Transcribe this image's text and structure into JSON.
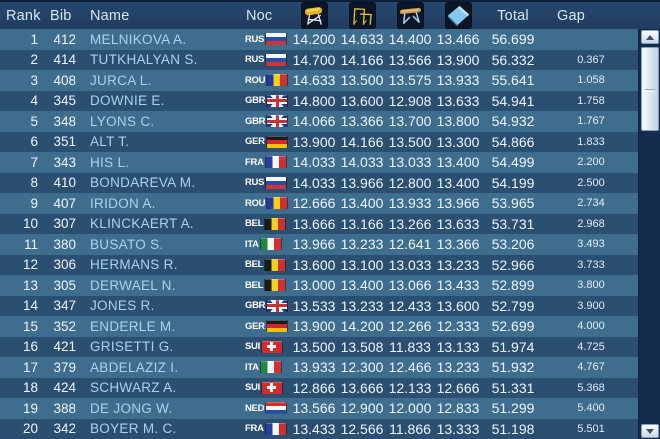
{
  "colors": {
    "header_bg": "#1f3d60",
    "row_light": "#3e6d8e",
    "row_dark": "#2b4f70",
    "name_text": "#a9d4ec",
    "number_text": "#eef6fd",
    "header_text": "#d6e7f5",
    "scroll_track": "#142c4e",
    "icon_bg": "#0a1526"
  },
  "header": {
    "rank": "Rank",
    "bib": "Bib",
    "name": "Name",
    "noc": "Noc",
    "total": "Total",
    "gap": "Gap",
    "apparatus": [
      {
        "icon": "vault-icon"
      },
      {
        "icon": "uneven-bars-icon"
      },
      {
        "icon": "balance-beam-icon"
      },
      {
        "icon": "floor-icon"
      }
    ]
  },
  "rows": [
    {
      "rank": "1",
      "bib": "412",
      "name": "MELNIKOVA A.",
      "noc": "RUS",
      "scores": [
        "14.200",
        "14.633",
        "14.400",
        "13.466"
      ],
      "total": "56.699",
      "gap": ""
    },
    {
      "rank": "2",
      "bib": "414",
      "name": "TUTKHALYAN S.",
      "noc": "RUS",
      "scores": [
        "14.700",
        "14.166",
        "13.566",
        "13.900"
      ],
      "total": "56.332",
      "gap": "0.367"
    },
    {
      "rank": "3",
      "bib": "408",
      "name": "JURCA L.",
      "noc": "ROU",
      "scores": [
        "14.633",
        "13.500",
        "13.575",
        "13.933"
      ],
      "total": "55.641",
      "gap": "1.058"
    },
    {
      "rank": "4",
      "bib": "345",
      "name": "DOWNIE E.",
      "noc": "GBR",
      "scores": [
        "14.800",
        "13.600",
        "12.908",
        "13.633"
      ],
      "total": "54.941",
      "gap": "1.758"
    },
    {
      "rank": "5",
      "bib": "348",
      "name": "LYONS C.",
      "noc": "GBR",
      "scores": [
        "14.066",
        "13.366",
        "13.700",
        "13.800"
      ],
      "total": "54.932",
      "gap": "1.767"
    },
    {
      "rank": "6",
      "bib": "351",
      "name": "ALT T.",
      "noc": "GER",
      "scores": [
        "13.900",
        "14.166",
        "13.500",
        "13.300"
      ],
      "total": "54.866",
      "gap": "1.833"
    },
    {
      "rank": "7",
      "bib": "343",
      "name": "HIS L.",
      "noc": "FRA",
      "scores": [
        "14.033",
        "14.033",
        "13.033",
        "13.400"
      ],
      "total": "54.499",
      "gap": "2.200"
    },
    {
      "rank": "8",
      "bib": "410",
      "name": "BONDAREVA M.",
      "noc": "RUS",
      "scores": [
        "14.033",
        "13.966",
        "12.800",
        "13.400"
      ],
      "total": "54.199",
      "gap": "2.500"
    },
    {
      "rank": "9",
      "bib": "407",
      "name": "IRIDON A.",
      "noc": "ROU",
      "scores": [
        "12.666",
        "13.400",
        "13.933",
        "13.966"
      ],
      "total": "53.965",
      "gap": "2.734"
    },
    {
      "rank": "10",
      "bib": "307",
      "name": "KLINCKAERT A.",
      "noc": "BEL",
      "scores": [
        "13.666",
        "13.166",
        "13.266",
        "13.633"
      ],
      "total": "53.731",
      "gap": "2.968"
    },
    {
      "rank": "11",
      "bib": "380",
      "name": "BUSATO S.",
      "noc": "ITA",
      "scores": [
        "13.966",
        "13.233",
        "12.641",
        "13.366"
      ],
      "total": "53.206",
      "gap": "3.493"
    },
    {
      "rank": "12",
      "bib": "306",
      "name": "HERMANS R.",
      "noc": "BEL",
      "scores": [
        "13.600",
        "13.100",
        "13.033",
        "13.233"
      ],
      "total": "52.966",
      "gap": "3.733"
    },
    {
      "rank": "13",
      "bib": "305",
      "name": "DERWAEL N.",
      "noc": "BEL",
      "scores": [
        "13.000",
        "13.400",
        "13.066",
        "13.433"
      ],
      "total": "52.899",
      "gap": "3.800"
    },
    {
      "rank": "14",
      "bib": "347",
      "name": "JONES R.",
      "noc": "GBR",
      "scores": [
        "13.533",
        "13.233",
        "12.433",
        "13.600"
      ],
      "total": "52.799",
      "gap": "3.900"
    },
    {
      "rank": "15",
      "bib": "352",
      "name": "ENDERLE M.",
      "noc": "GER",
      "scores": [
        "13.900",
        "14.200",
        "12.266",
        "12.333"
      ],
      "total": "52.699",
      "gap": "4.000"
    },
    {
      "rank": "16",
      "bib": "421",
      "name": "GRISETTI G.",
      "noc": "SUI",
      "scores": [
        "13.500",
        "13.508",
        "11.833",
        "13.133"
      ],
      "total": "51.974",
      "gap": "4.725"
    },
    {
      "rank": "17",
      "bib": "379",
      "name": "ABDELAZIZ I.",
      "noc": "ITA",
      "scores": [
        "13.933",
        "12.300",
        "12.466",
        "13.233"
      ],
      "total": "51.932",
      "gap": "4.767"
    },
    {
      "rank": "18",
      "bib": "424",
      "name": "SCHWARZ A.",
      "noc": "SUI",
      "scores": [
        "12.866",
        "13.666",
        "12.133",
        "12.666"
      ],
      "total": "51.331",
      "gap": "5.368"
    },
    {
      "rank": "19",
      "bib": "388",
      "name": "DE JONG W.",
      "noc": "NED",
      "scores": [
        "13.566",
        "12.900",
        "12.000",
        "12.833"
      ],
      "total": "51.299",
      "gap": "5.400"
    },
    {
      "rank": "20",
      "bib": "342",
      "name": "BOYER M. C.",
      "noc": "FRA",
      "scores": [
        "13.433",
        "12.566",
        "11.866",
        "13.333"
      ],
      "total": "51.198",
      "gap": "5.501"
    }
  ]
}
